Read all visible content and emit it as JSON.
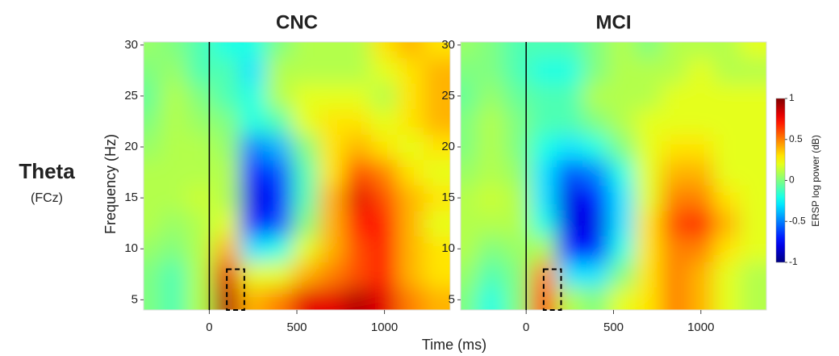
{
  "row_label": "Theta",
  "row_sublabel": "(FCz)",
  "xlabel": "Time (ms)",
  "ylabel": "Frequency (Hz)",
  "colorbar": {
    "label": "ERSP log power (dB)",
    "lim": [
      -1,
      1
    ],
    "ticks": [
      -1,
      -0.5,
      0,
      0.5,
      1
    ]
  },
  "chart_data": [
    {
      "type": "heatmap",
      "title": "CNC",
      "x": [
        -350,
        -200,
        -50,
        100,
        250,
        400,
        550,
        700,
        850,
        1000,
        1150,
        1300
      ],
      "y": [
        5,
        7.5,
        10,
        12.5,
        15,
        17.5,
        20,
        22.5,
        25,
        27.5,
        30
      ],
      "values": [
        [
          0,
          -0.1,
          0.1,
          0.9,
          0.4,
          0.5,
          0.8,
          0.8,
          0.9,
          0.8,
          0.5,
          0.4
        ],
        [
          0,
          -0.1,
          0.1,
          0.8,
          0.2,
          0.2,
          0.4,
          0.5,
          0.6,
          0.7,
          0.4,
          0.3
        ],
        [
          0.05,
          0,
          0.1,
          0.4,
          -0.3,
          -0.2,
          0.2,
          0.4,
          0.6,
          0.7,
          0.4,
          0.3
        ],
        [
          0.1,
          0.05,
          0.1,
          0.2,
          -0.7,
          -0.6,
          0,
          0.4,
          0.7,
          0.7,
          0.4,
          0.2
        ],
        [
          0.1,
          0.1,
          0.15,
          0.1,
          -0.8,
          -0.7,
          -0.1,
          0.4,
          0.8,
          0.6,
          0.4,
          0.3
        ],
        [
          0.1,
          0.1,
          0.1,
          0.1,
          -0.7,
          -0.6,
          -0.1,
          0.3,
          0.6,
          0.5,
          0.3,
          0.2
        ],
        [
          0.05,
          0.1,
          0.1,
          0.05,
          -0.5,
          -0.4,
          0,
          0.3,
          0.4,
          0.3,
          0.2,
          0.3
        ],
        [
          0,
          0.1,
          0.05,
          0,
          -0.2,
          -0.1,
          0.2,
          0.3,
          0.3,
          0.2,
          0.3,
          0.4
        ],
        [
          -0.05,
          0.1,
          0,
          -0.1,
          -0.2,
          0.1,
          0.2,
          0.2,
          0.2,
          0.1,
          0.3,
          0.4
        ],
        [
          0,
          0.05,
          -0.1,
          -0.1,
          -0.3,
          0.1,
          0.1,
          0.1,
          0.1,
          0.2,
          0.3,
          0.4
        ],
        [
          0.05,
          0,
          -0.1,
          -0.2,
          -0.2,
          0,
          0.1,
          0.1,
          0.1,
          0.3,
          0.4,
          0.3
        ]
      ],
      "xlim": [
        -375,
        1375
      ],
      "ylim": [
        4,
        30.3
      ],
      "xticks": [
        0,
        500,
        1000
      ],
      "yticks": [
        5,
        10,
        15,
        20,
        25,
        30
      ],
      "event_time": 0,
      "window": {
        "x": [
          100,
          200
        ],
        "y": [
          4,
          8
        ]
      }
    },
    {
      "type": "heatmap",
      "title": "MCI",
      "x": [
        -350,
        -200,
        -50,
        100,
        250,
        400,
        550,
        700,
        850,
        1000,
        1150,
        1300
      ],
      "y": [
        5,
        7.5,
        10,
        12.5,
        15,
        17.5,
        20,
        22.5,
        25,
        27.5,
        30
      ],
      "values": [
        [
          0,
          -0.2,
          0,
          0.6,
          0.1,
          0,
          0.2,
          0.3,
          0.5,
          0.4,
          0.2,
          0.1
        ],
        [
          0.05,
          -0.1,
          0,
          0.5,
          -0.3,
          -0.3,
          0,
          0.3,
          0.5,
          0.4,
          0.2,
          0.1
        ],
        [
          0.1,
          0,
          0.05,
          0.1,
          -0.7,
          -0.7,
          -0.2,
          0.3,
          0.5,
          0.5,
          0.3,
          0.2
        ],
        [
          0.1,
          0.1,
          0.1,
          -0.2,
          -0.8,
          -0.8,
          -0.3,
          0.3,
          0.6,
          0.7,
          0.4,
          0.2
        ],
        [
          0.1,
          0.15,
          0.1,
          -0.3,
          -0.8,
          -0.7,
          -0.3,
          0.2,
          0.5,
          0.5,
          0.3,
          0.2
        ],
        [
          0.05,
          0.1,
          0.05,
          -0.3,
          -0.6,
          -0.5,
          -0.2,
          0.2,
          0.4,
          0.4,
          0.2,
          0.2
        ],
        [
          0,
          0.1,
          0,
          -0.2,
          -0.3,
          -0.2,
          0,
          0.2,
          0.3,
          0.3,
          0.2,
          0.2
        ],
        [
          0,
          0.1,
          0,
          -0.1,
          -0.1,
          0,
          0.1,
          0.2,
          0.2,
          0.2,
          0.2,
          0.2
        ],
        [
          -0.05,
          0.05,
          -0.05,
          -0.1,
          -0.1,
          0.1,
          0.1,
          0.1,
          0.2,
          0.2,
          0.2,
          0.2
        ],
        [
          0,
          0,
          -0.1,
          -0.2,
          -0.2,
          0,
          0.1,
          0.1,
          0.1,
          0.2,
          0.1,
          0.1
        ],
        [
          0.05,
          0,
          -0.1,
          -0.1,
          -0.1,
          0,
          0.1,
          0,
          0.1,
          0.1,
          0.1,
          0.2
        ]
      ],
      "xlim": [
        -375,
        1375
      ],
      "ylim": [
        4,
        30.3
      ],
      "xticks": [
        0,
        500,
        1000
      ],
      "yticks": [
        5,
        10,
        15,
        20,
        25,
        30
      ],
      "event_time": 0,
      "window": {
        "x": [
          100,
          200
        ],
        "y": [
          4,
          8
        ]
      }
    }
  ]
}
